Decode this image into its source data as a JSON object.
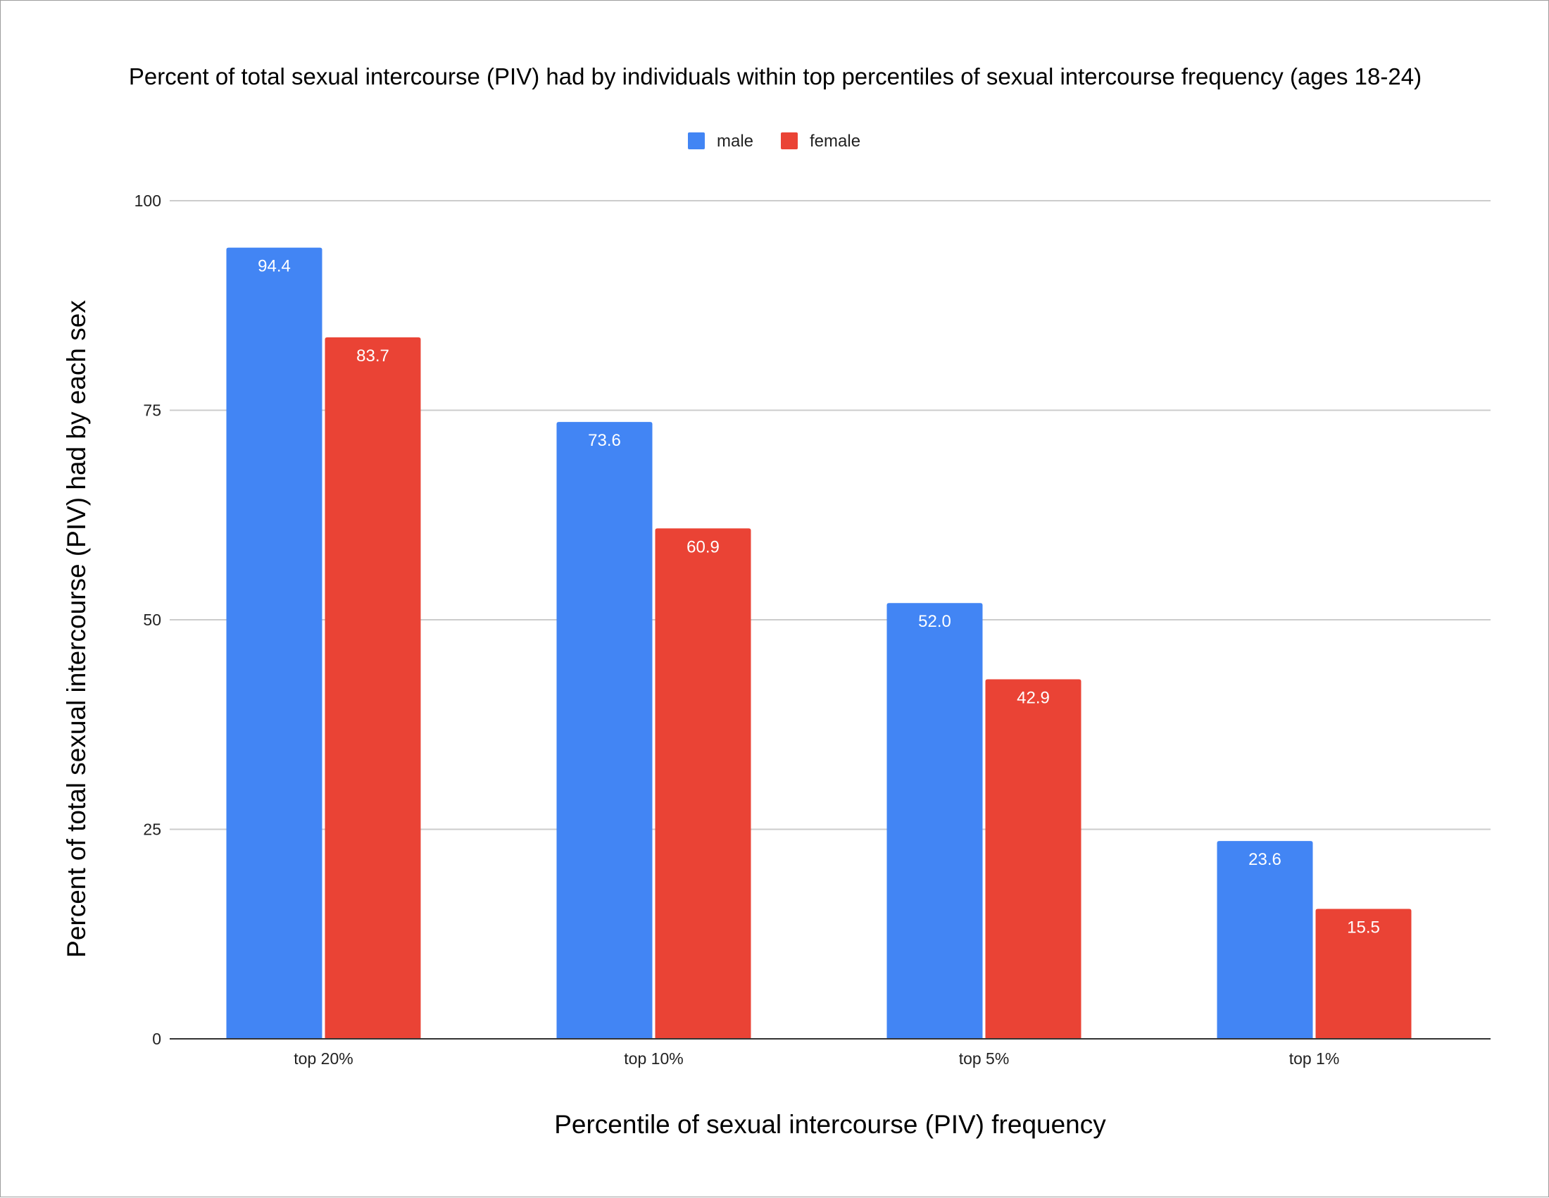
{
  "chart_data": {
    "type": "bar",
    "title": "Percent of total sexual intercourse (PIV) had by individuals within top percentiles of sexual intercourse frequency (ages 18-24)",
    "xlabel": "Percentile of sexual intercourse (PIV) frequency",
    "ylabel": "Percent of total sexual intercourse (PIV) had by each sex",
    "categories": [
      "top 20%",
      "top 10%",
      "top 5%",
      "top 1%"
    ],
    "series": [
      {
        "name": "male",
        "color": "#4285f4",
        "values": [
          94.4,
          73.6,
          52.0,
          23.6
        ],
        "labels": [
          "94.4",
          "73.6",
          "52.0",
          "23.6"
        ]
      },
      {
        "name": "female",
        "color": "#ea4335",
        "values": [
          83.7,
          60.9,
          42.9,
          15.5
        ],
        "labels": [
          "83.7",
          "60.9",
          "42.9",
          "15.5"
        ]
      }
    ],
    "ylim": [
      0,
      100
    ],
    "yticks": [
      0,
      25,
      50,
      75,
      100
    ],
    "ytick_labels": [
      "0",
      "25",
      "50",
      "75",
      "100"
    ],
    "grid": true,
    "legend_position": "top-center"
  }
}
